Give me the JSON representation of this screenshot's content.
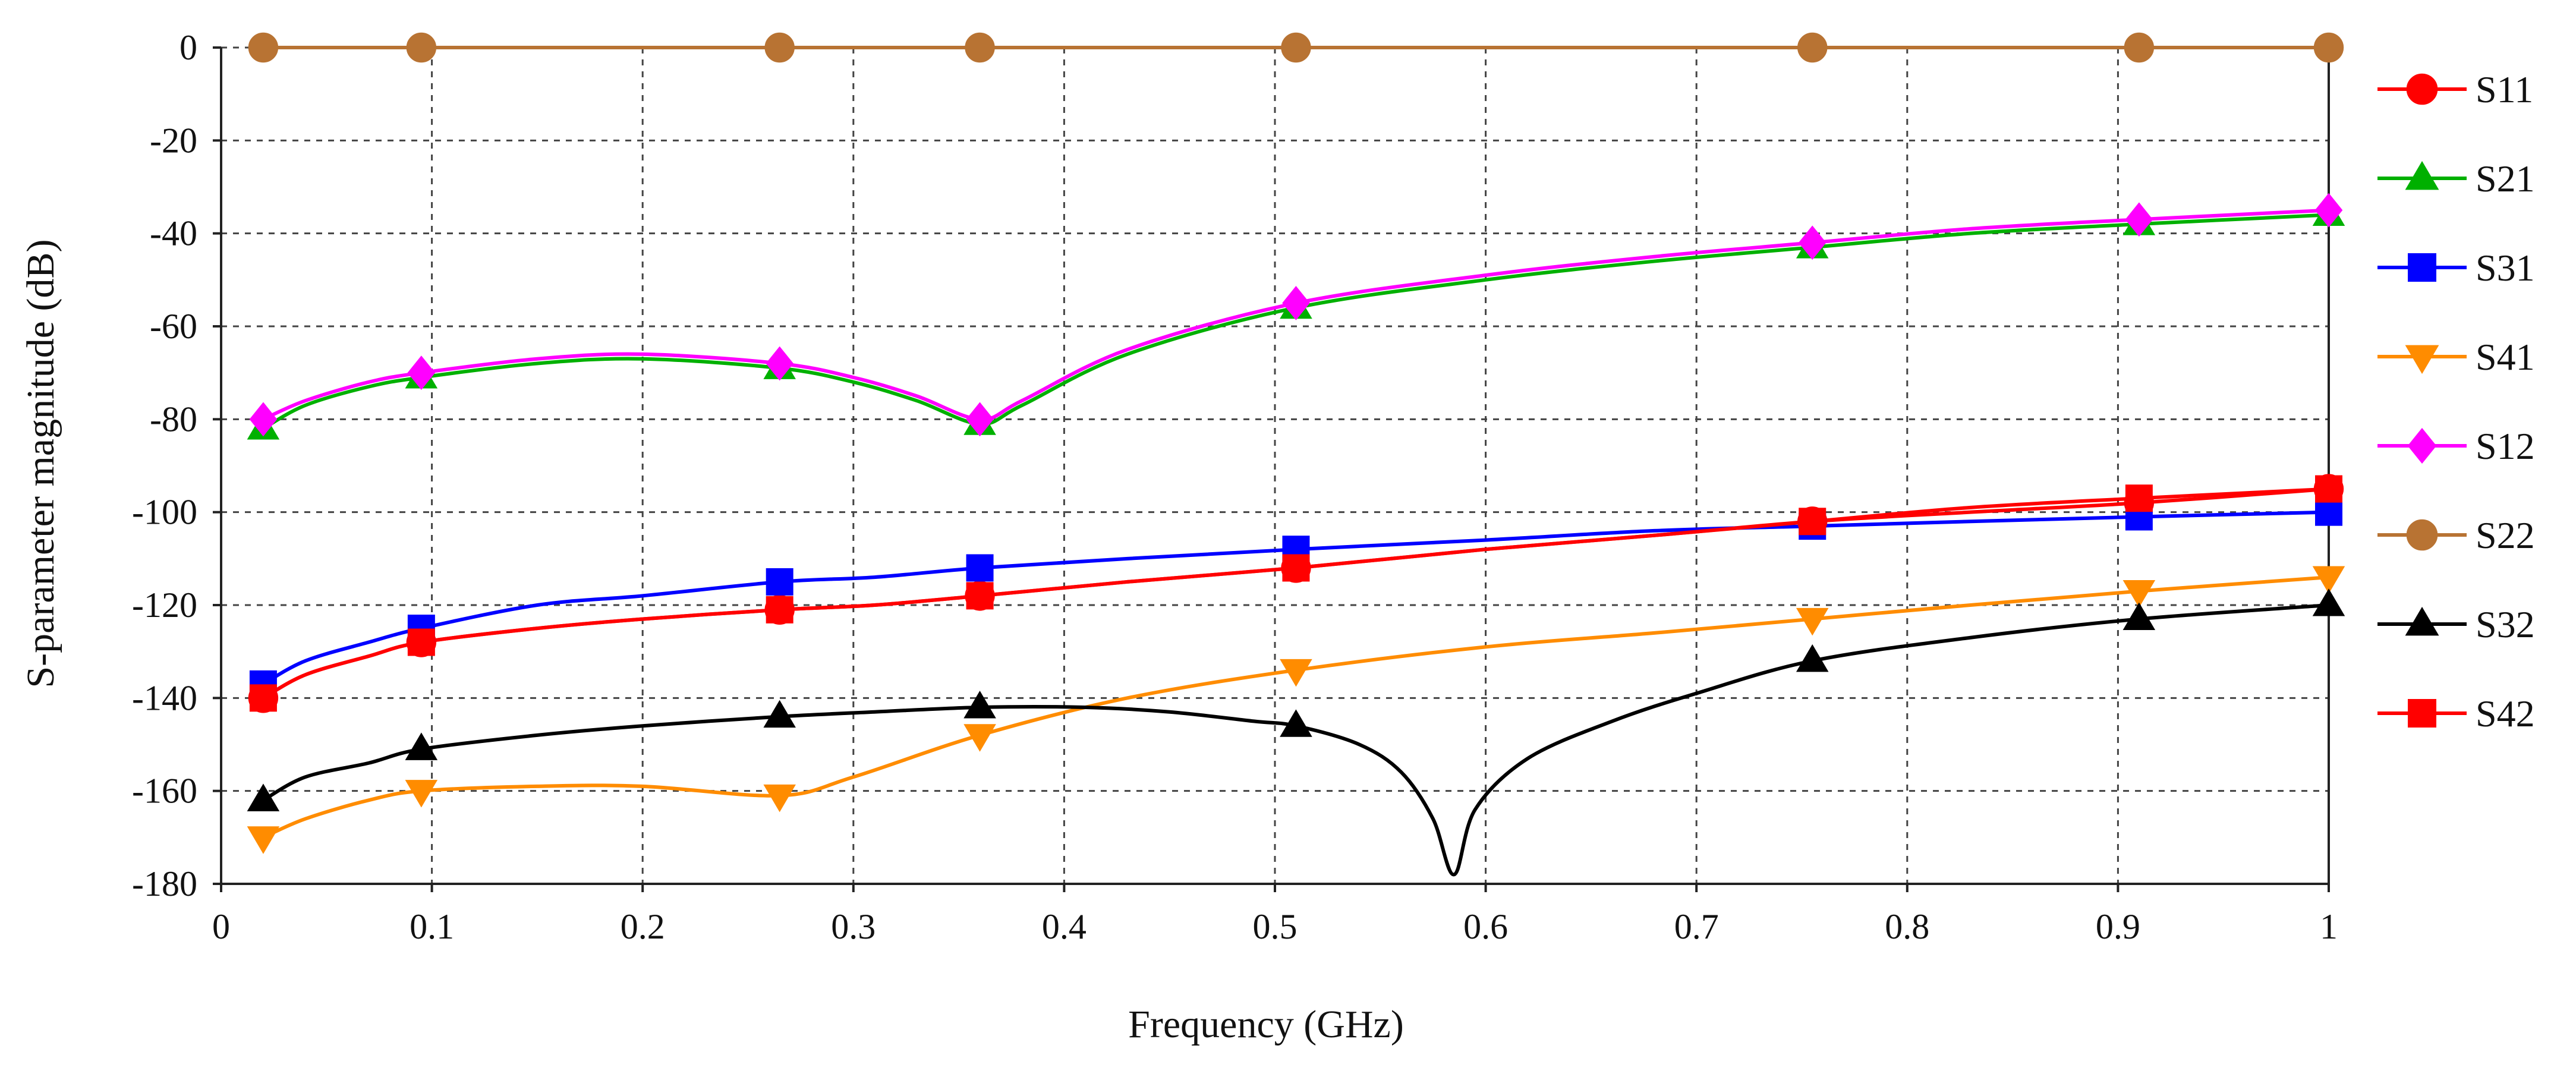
{
  "chart_data": {
    "type": "line",
    "title": "",
    "xlabel": "Frequency (GHz)",
    "ylabel": "S-parameter magnitude (dB)",
    "xlim": [
      0,
      1
    ],
    "ylim": [
      -180,
      0
    ],
    "xticks": [
      0,
      0.1,
      0.2,
      0.3,
      0.4,
      0.5,
      0.6,
      0.7,
      0.8,
      0.9,
      1
    ],
    "xtick_labels": [
      "0",
      "0.1",
      "0.2",
      "0.3",
      "0.4",
      "0.5",
      "0.6",
      "0.7",
      "0.8",
      "0.9",
      "1"
    ],
    "yticks": [
      0,
      -20,
      -40,
      -60,
      -80,
      -100,
      -120,
      -140,
      -160,
      -180
    ],
    "ytick_labels": [
      "0",
      "-20",
      "-40",
      "-60",
      "-80",
      "-100",
      "-120",
      "-140",
      "-160",
      "-180"
    ],
    "grid": true,
    "legend_position": "right",
    "marker_x": [
      0.02,
      0.095,
      0.265,
      0.36,
      0.51,
      0.755,
      0.91,
      1.0
    ],
    "series": [
      {
        "name": "S11",
        "color": "#ff0000",
        "marker": "circle",
        "markers": [
          -140,
          -128,
          -121,
          -118,
          -112,
          -102,
          -98,
          -95
        ],
        "curve": [
          [
            0.02,
            -140
          ],
          [
            0.04,
            -135
          ],
          [
            0.07,
            -131
          ],
          [
            0.095,
            -128
          ],
          [
            0.15,
            -125
          ],
          [
            0.2,
            -123
          ],
          [
            0.265,
            -121
          ],
          [
            0.31,
            -120
          ],
          [
            0.36,
            -118
          ],
          [
            0.43,
            -115
          ],
          [
            0.51,
            -112
          ],
          [
            0.6,
            -108
          ],
          [
            0.68,
            -105
          ],
          [
            0.755,
            -102
          ],
          [
            0.83,
            -100
          ],
          [
            0.91,
            -98
          ],
          [
            1.0,
            -95
          ]
        ]
      },
      {
        "name": "S21",
        "color": "#00b000",
        "marker": "triangle",
        "markers": [
          -82,
          -71,
          -69,
          -81,
          -56,
          -43,
          -38,
          -36
        ],
        "curve": [
          [
            0.02,
            -82
          ],
          [
            0.04,
            -77
          ],
          [
            0.07,
            -73
          ],
          [
            0.095,
            -71
          ],
          [
            0.15,
            -68
          ],
          [
            0.2,
            -67
          ],
          [
            0.265,
            -69
          ],
          [
            0.3,
            -72
          ],
          [
            0.33,
            -76
          ],
          [
            0.36,
            -81
          ],
          [
            0.38,
            -77
          ],
          [
            0.43,
            -66
          ],
          [
            0.51,
            -56
          ],
          [
            0.6,
            -50
          ],
          [
            0.68,
            -46
          ],
          [
            0.755,
            -43
          ],
          [
            0.83,
            -40
          ],
          [
            0.91,
            -38
          ],
          [
            1.0,
            -36
          ]
        ]
      },
      {
        "name": "S31",
        "color": "#0000ff",
        "marker": "square",
        "markers": [
          -137,
          -125,
          -115,
          -112,
          -108,
          -103,
          -101,
          -100
        ],
        "curve": [
          [
            0.02,
            -137
          ],
          [
            0.04,
            -132
          ],
          [
            0.07,
            -128
          ],
          [
            0.095,
            -125
          ],
          [
            0.15,
            -120
          ],
          [
            0.2,
            -118
          ],
          [
            0.265,
            -115
          ],
          [
            0.31,
            -114
          ],
          [
            0.36,
            -112
          ],
          [
            0.43,
            -110
          ],
          [
            0.51,
            -108
          ],
          [
            0.6,
            -106
          ],
          [
            0.68,
            -104
          ],
          [
            0.755,
            -103
          ],
          [
            0.83,
            -102
          ],
          [
            0.91,
            -101
          ],
          [
            1.0,
            -100
          ]
        ]
      },
      {
        "name": "S41",
        "color": "#ff8c00",
        "marker": "triangle-down",
        "markers": [
          -170,
          -160,
          -161,
          -148,
          -134,
          -123,
          -117,
          -114
        ],
        "curve": [
          [
            0.02,
            -170
          ],
          [
            0.04,
            -166
          ],
          [
            0.07,
            -162
          ],
          [
            0.095,
            -160
          ],
          [
            0.15,
            -159
          ],
          [
            0.2,
            -159
          ],
          [
            0.265,
            -161
          ],
          [
            0.3,
            -157
          ],
          [
            0.36,
            -148
          ],
          [
            0.43,
            -140
          ],
          [
            0.51,
            -134
          ],
          [
            0.6,
            -129
          ],
          [
            0.68,
            -126
          ],
          [
            0.755,
            -123
          ],
          [
            0.83,
            -120
          ],
          [
            0.91,
            -117
          ],
          [
            1.0,
            -114
          ]
        ]
      },
      {
        "name": "S12",
        "color": "#ff00ff",
        "marker": "diamond",
        "markers": [
          -80,
          -70,
          -68,
          -80,
          -55,
          -42,
          -37,
          -35
        ],
        "curve": [
          [
            0.02,
            -80
          ],
          [
            0.04,
            -76
          ],
          [
            0.07,
            -72
          ],
          [
            0.095,
            -70
          ],
          [
            0.15,
            -67
          ],
          [
            0.2,
            -66
          ],
          [
            0.265,
            -68
          ],
          [
            0.3,
            -71
          ],
          [
            0.33,
            -75
          ],
          [
            0.36,
            -80
          ],
          [
            0.38,
            -76
          ],
          [
            0.43,
            -65
          ],
          [
            0.51,
            -55
          ],
          [
            0.6,
            -49
          ],
          [
            0.68,
            -45
          ],
          [
            0.755,
            -42
          ],
          [
            0.83,
            -39
          ],
          [
            0.91,
            -37
          ],
          [
            1.0,
            -35
          ]
        ]
      },
      {
        "name": "S22",
        "color": "#b87333",
        "marker": "circle",
        "markers": [
          0,
          0,
          0,
          0,
          0,
          0,
          0,
          0
        ],
        "curve": [
          [
            0.02,
            0
          ],
          [
            1.0,
            0
          ]
        ]
      },
      {
        "name": "S32",
        "color": "#000000",
        "marker": "triangle",
        "markers": [
          -162,
          -151,
          -144,
          -142,
          -146,
          -132,
          -123,
          -120
        ],
        "curve": [
          [
            0.02,
            -162
          ],
          [
            0.04,
            -157
          ],
          [
            0.07,
            -154
          ],
          [
            0.095,
            -151
          ],
          [
            0.15,
            -148
          ],
          [
            0.2,
            -146
          ],
          [
            0.265,
            -144
          ],
          [
            0.31,
            -143
          ],
          [
            0.36,
            -142
          ],
          [
            0.41,
            -142
          ],
          [
            0.45,
            -143
          ],
          [
            0.49,
            -145
          ],
          [
            0.51,
            -146
          ],
          [
            0.54,
            -150
          ],
          [
            0.56,
            -156
          ],
          [
            0.575,
            -166
          ],
          [
            0.585,
            -178
          ],
          [
            0.595,
            -164
          ],
          [
            0.62,
            -153
          ],
          [
            0.66,
            -145
          ],
          [
            0.7,
            -139
          ],
          [
            0.755,
            -132
          ],
          [
            0.83,
            -127
          ],
          [
            0.91,
            -123
          ],
          [
            1.0,
            -120
          ]
        ]
      },
      {
        "name": "S42",
        "color": "#ff0000",
        "marker": "square",
        "markers": [
          -140,
          -128,
          -121,
          -118,
          -112,
          -102,
          -97,
          -95
        ],
        "curve": [
          [
            0.02,
            -140
          ],
          [
            0.04,
            -135
          ],
          [
            0.07,
            -131
          ],
          [
            0.095,
            -128
          ],
          [
            0.15,
            -125
          ],
          [
            0.2,
            -123
          ],
          [
            0.265,
            -121
          ],
          [
            0.31,
            -120
          ],
          [
            0.36,
            -118
          ],
          [
            0.43,
            -115
          ],
          [
            0.51,
            -112
          ],
          [
            0.6,
            -108
          ],
          [
            0.68,
            -105
          ],
          [
            0.755,
            -102
          ],
          [
            0.83,
            -99
          ],
          [
            0.91,
            -97
          ],
          [
            1.0,
            -95
          ]
        ]
      }
    ]
  }
}
